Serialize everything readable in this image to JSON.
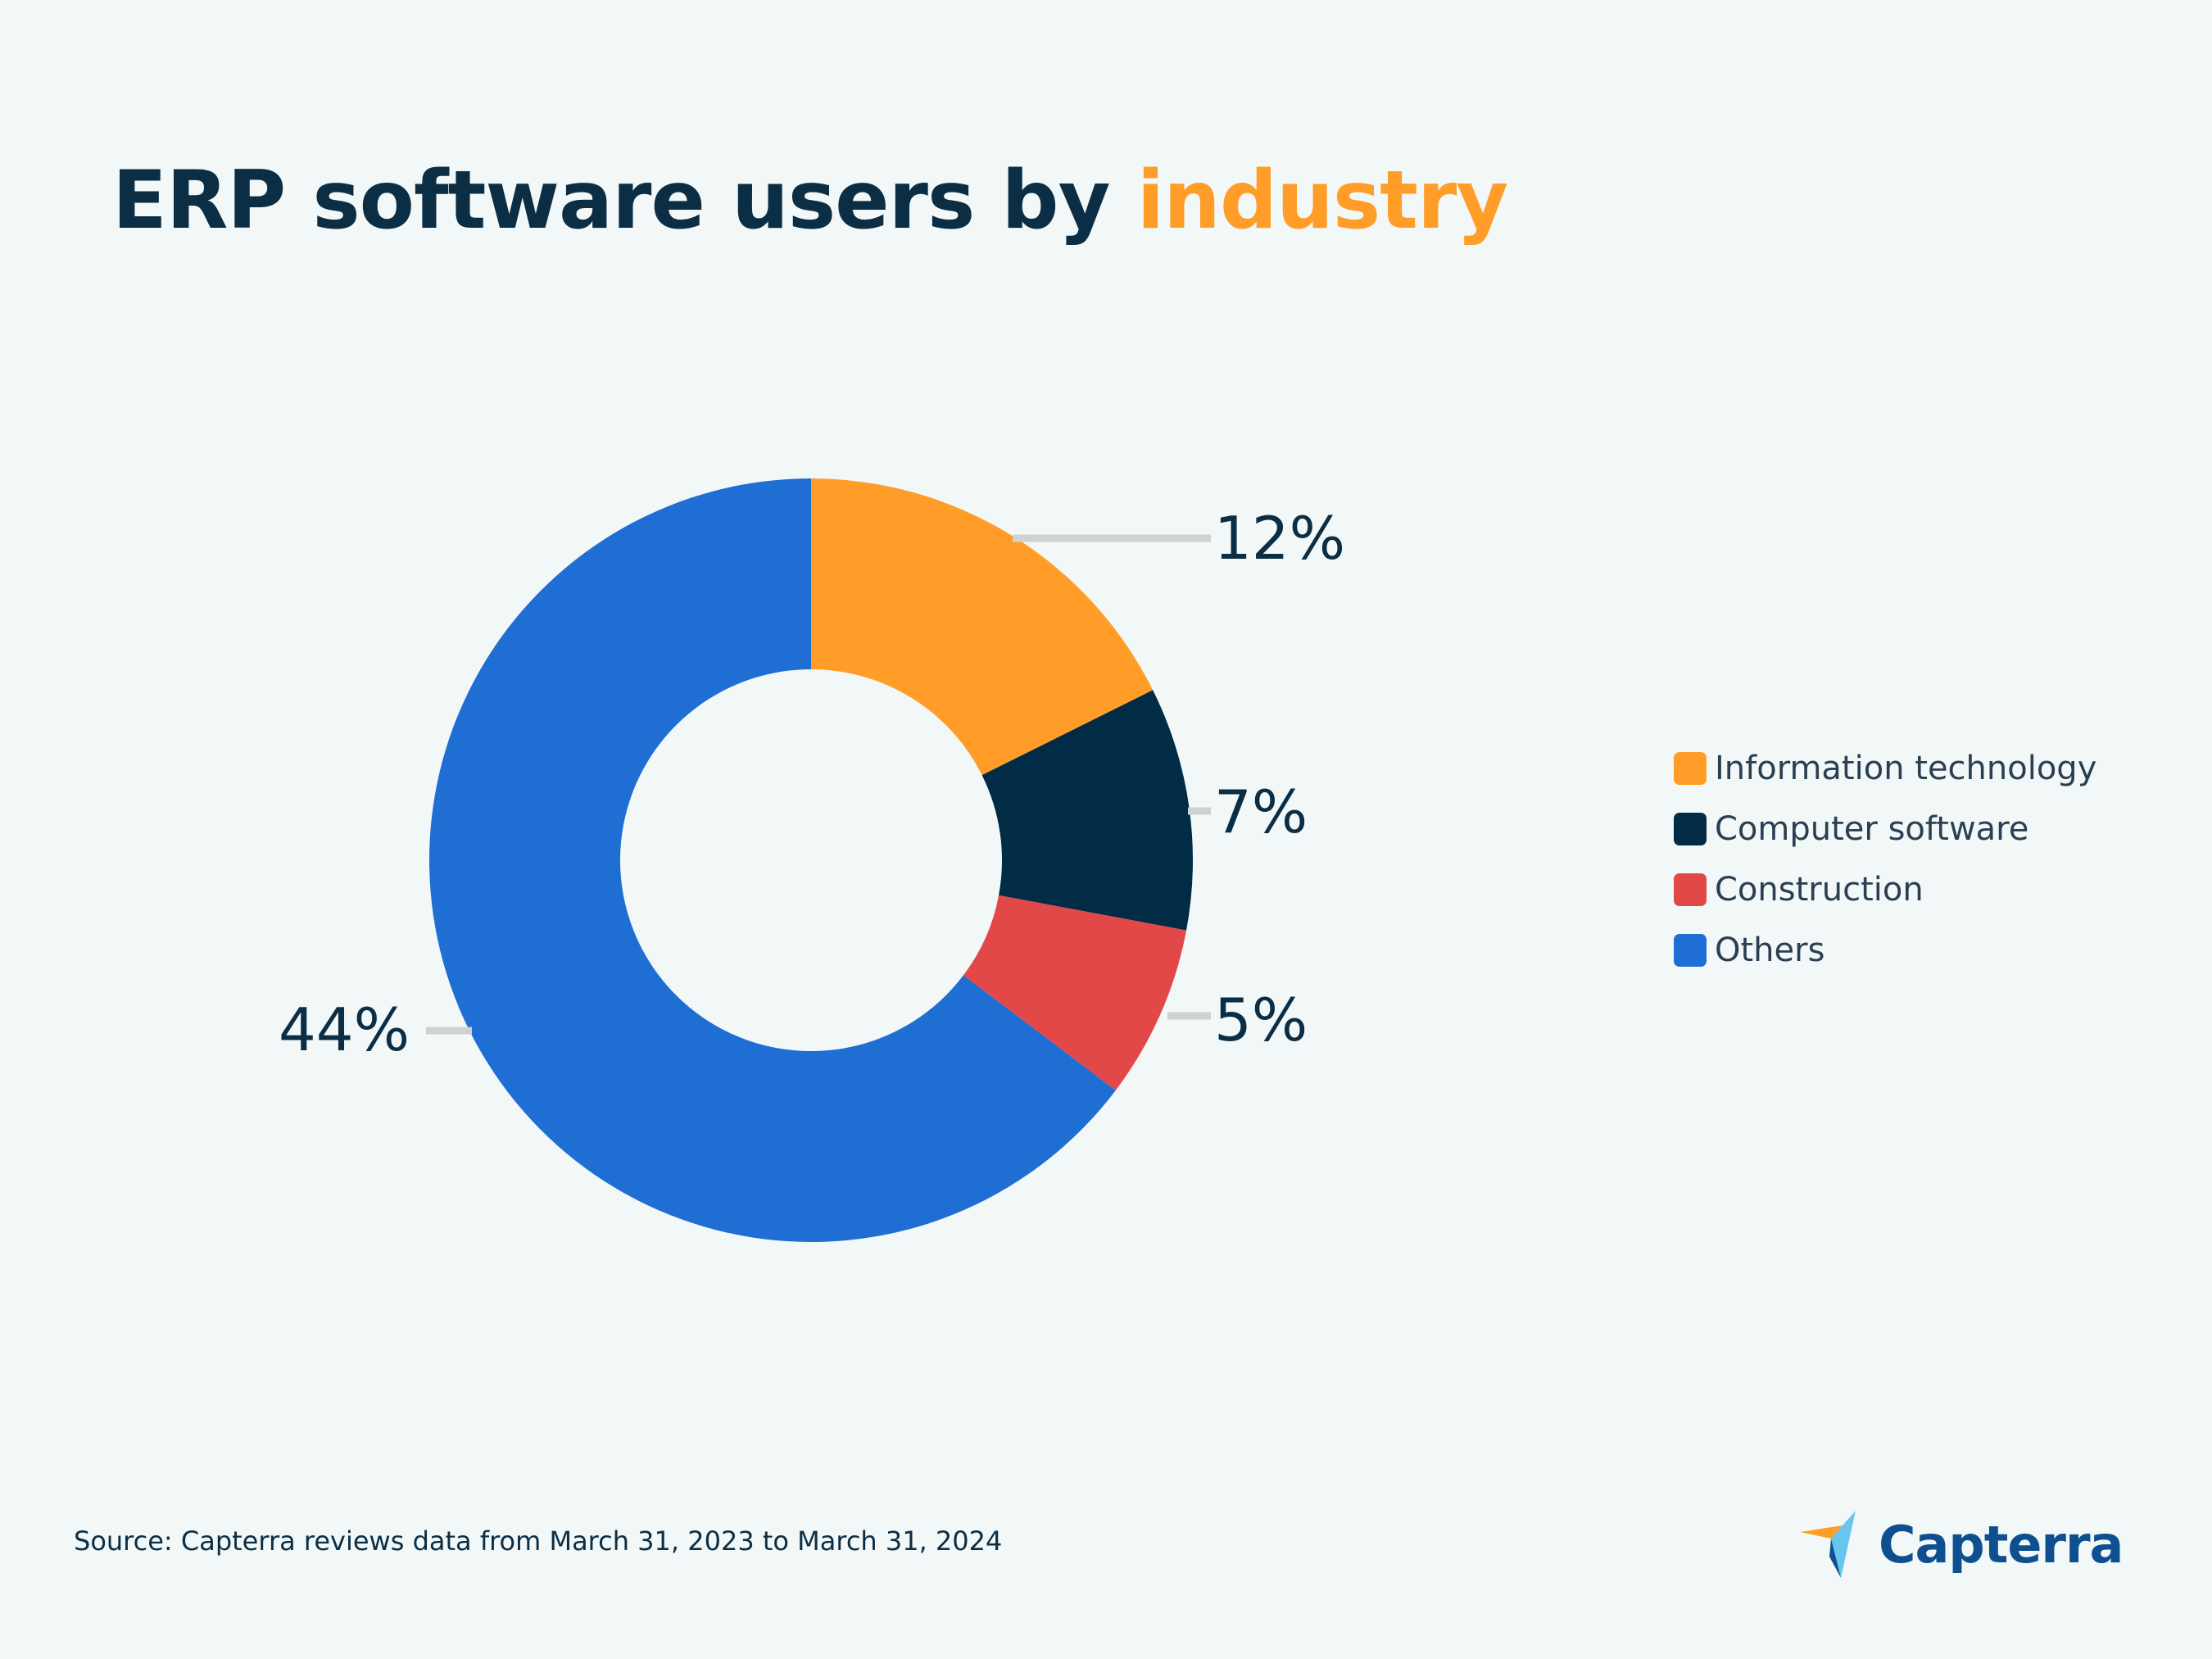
{
  "header": {
    "title_main": "ERP software users by",
    "title_accent": "industry"
  },
  "colors": {
    "background": "#f2f8f8",
    "text_dark": "#0b2e45",
    "accent": "#ff9d28",
    "leader_line": "#cdd3d3"
  },
  "chart_data": {
    "type": "pie",
    "variant": "donut",
    "title": "ERP software users by industry",
    "categories": [
      "Information technology",
      "Computer software",
      "Construction",
      "Others"
    ],
    "values": [
      12,
      7,
      5,
      44
    ],
    "labels": [
      "12%",
      "7%",
      "5%",
      "44%"
    ],
    "colors": [
      "#ff9d28",
      "#022c45",
      "#e34849",
      "#1f6ed4"
    ],
    "start_angle_deg": 0,
    "direction": "clockwise",
    "legend_position": "right"
  },
  "footer": {
    "source": "Source: Capterra reviews data from March 31, 2023 to March 31, 2024",
    "logo_text": "Capterra"
  }
}
